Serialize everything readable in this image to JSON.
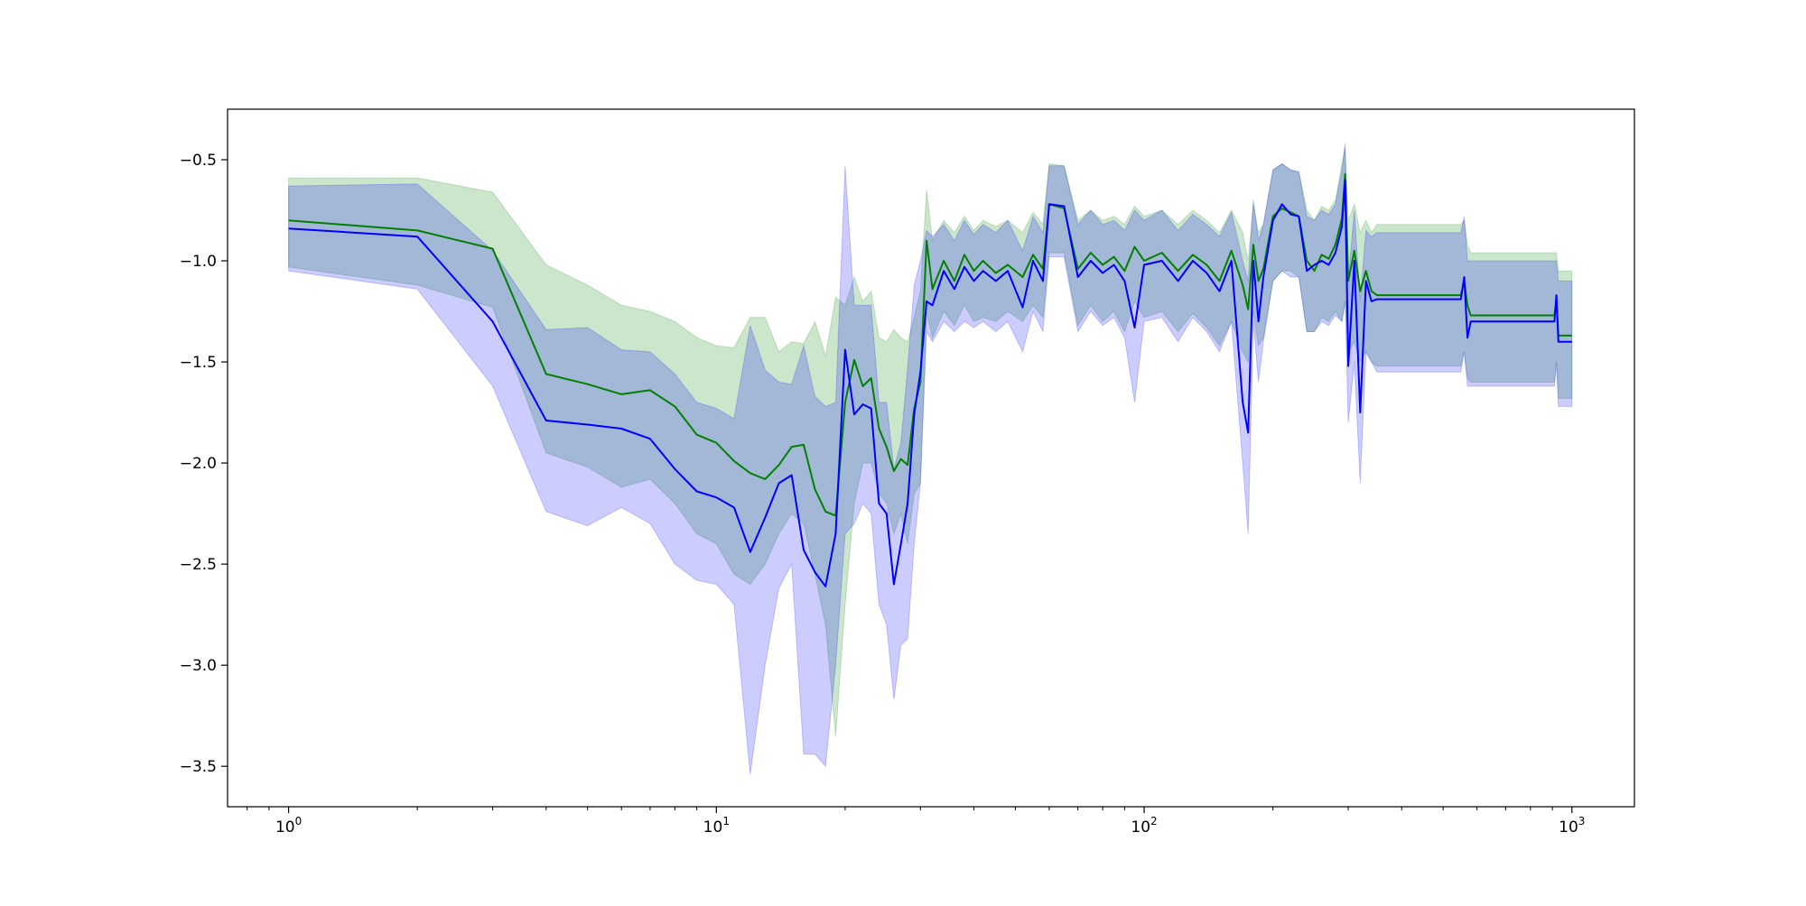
{
  "chart_data": {
    "type": "line",
    "title": "",
    "xlabel": "",
    "ylabel": "",
    "xscale": "log",
    "xlim": [
      0.72,
      1400
    ],
    "ylim": [
      -3.7,
      -0.25
    ],
    "grid": false,
    "legend": "none",
    "x_ticks": [
      {
        "value": 1,
        "base": "10",
        "exp": "0"
      },
      {
        "value": 10,
        "base": "10",
        "exp": "1"
      },
      {
        "value": 100,
        "base": "10",
        "exp": "2"
      },
      {
        "value": 1000,
        "base": "10",
        "exp": "3"
      }
    ],
    "y_ticks": [
      {
        "value": -0.5,
        "label": "−0.5"
      },
      {
        "value": -1.0,
        "label": "−1.0"
      },
      {
        "value": -1.5,
        "label": "−1.5"
      },
      {
        "value": -2.0,
        "label": "−2.0"
      },
      {
        "value": -2.5,
        "label": "−2.5"
      },
      {
        "value": -3.0,
        "label": "−3.0"
      },
      {
        "value": -3.5,
        "label": "−3.5"
      }
    ],
    "series": [
      {
        "color": "#008000",
        "band_color": "#008000",
        "x": [
          1,
          2,
          3,
          4,
          5,
          6,
          7,
          8,
          9,
          10,
          11,
          12,
          13,
          14,
          15,
          16,
          17,
          18,
          19,
          20,
          21,
          22,
          23,
          24,
          25,
          26,
          27,
          28,
          29,
          30,
          31,
          32,
          34,
          36,
          38,
          40,
          42,
          45,
          48,
          52,
          55,
          58,
          60,
          65,
          70,
          75,
          80,
          85,
          90,
          95,
          100,
          110,
          120,
          130,
          140,
          150,
          160,
          170,
          175,
          180,
          185,
          190,
          200,
          210,
          220,
          230,
          240,
          250,
          260,
          270,
          280,
          290,
          295,
          300,
          310,
          320,
          330,
          340,
          350,
          400,
          500,
          550,
          560,
          570,
          580,
          600,
          700,
          800,
          900,
          910,
          920,
          930,
          1000
        ],
        "y": [
          -0.8,
          -0.85,
          -0.94,
          -1.56,
          -1.61,
          -1.66,
          -1.64,
          -1.72,
          -1.86,
          -1.9,
          -1.99,
          -2.05,
          -2.08,
          -2.01,
          -1.92,
          -1.91,
          -2.13,
          -2.24,
          -2.26,
          -1.7,
          -1.49,
          -1.62,
          -1.58,
          -1.83,
          -1.92,
          -2.04,
          -1.98,
          -2.01,
          -1.73,
          -1.6,
          -0.9,
          -1.14,
          -1.0,
          -1.1,
          -0.97,
          -1.05,
          -1.0,
          -1.06,
          -1.02,
          -1.08,
          -0.97,
          -1.04,
          -0.72,
          -0.74,
          -1.04,
          -0.96,
          -1.02,
          -0.98,
          -1.05,
          -0.93,
          -1.0,
          -0.96,
          -1.05,
          -0.97,
          -1.02,
          -1.1,
          -0.95,
          -1.12,
          -1.24,
          -0.92,
          -1.1,
          -1.04,
          -0.78,
          -0.74,
          -0.76,
          -0.78,
          -1.0,
          -1.05,
          -0.97,
          -0.99,
          -0.92,
          -0.79,
          -0.57,
          -1.1,
          -0.95,
          -1.15,
          -1.05,
          -1.15,
          -1.17,
          -1.17,
          -1.17,
          -1.17,
          -1.1,
          -1.22,
          -1.27,
          -1.27,
          -1.27,
          -1.27,
          -1.27,
          -1.27,
          -1.2,
          -1.37,
          -1.37
        ],
        "lower": [
          -1.03,
          -1.12,
          -1.23,
          -1.95,
          -2.02,
          -2.12,
          -2.08,
          -2.2,
          -2.35,
          -2.4,
          -2.55,
          -2.6,
          -2.5,
          -2.35,
          -2.25,
          -2.3,
          -2.55,
          -2.8,
          -3.35,
          -2.7,
          -2.2,
          -2.0,
          -2.0,
          -2.15,
          -2.2,
          -2.35,
          -2.25,
          -2.4,
          -2.15,
          -2.1,
          -1.25,
          -1.38,
          -1.25,
          -1.32,
          -1.22,
          -1.3,
          -1.28,
          -1.3,
          -1.25,
          -1.3,
          -1.22,
          -1.28,
          -0.96,
          -0.96,
          -1.32,
          -1.22,
          -1.3,
          -1.25,
          -1.35,
          -1.2,
          -1.28,
          -1.25,
          -1.35,
          -1.26,
          -1.33,
          -1.42,
          -1.3,
          -1.45,
          -1.5,
          -1.25,
          -1.42,
          -1.38,
          -1.1,
          -1.05,
          -1.05,
          -1.08,
          -1.35,
          -1.35,
          -1.28,
          -1.3,
          -1.25,
          -1.3,
          -1.2,
          -1.45,
          -1.4,
          -1.5,
          -1.45,
          -1.5,
          -1.52,
          -1.52,
          -1.52,
          -1.52,
          -1.45,
          -1.58,
          -1.6,
          -1.6,
          -1.6,
          -1.6,
          -1.6,
          -1.6,
          -1.5,
          -1.68,
          -1.68
        ],
        "upper": [
          -0.59,
          -0.59,
          -0.66,
          -1.02,
          -1.12,
          -1.22,
          -1.25,
          -1.3,
          -1.38,
          -1.42,
          -1.43,
          -1.28,
          -1.28,
          -1.45,
          -1.4,
          -1.41,
          -1.3,
          -1.47,
          -1.18,
          -1.22,
          -1.08,
          -1.2,
          -1.15,
          -1.38,
          -1.4,
          -1.34,
          -1.38,
          -1.4,
          -1.28,
          -1.15,
          -0.65,
          -0.9,
          -0.8,
          -0.86,
          -0.78,
          -0.85,
          -0.8,
          -0.83,
          -0.8,
          -0.86,
          -0.76,
          -0.82,
          -0.52,
          -0.53,
          -0.8,
          -0.75,
          -0.8,
          -0.78,
          -0.82,
          -0.73,
          -0.78,
          -0.75,
          -0.82,
          -0.75,
          -0.8,
          -0.86,
          -0.75,
          -0.86,
          -1.0,
          -0.72,
          -0.86,
          -0.82,
          -0.55,
          -0.52,
          -0.55,
          -0.56,
          -0.75,
          -0.8,
          -0.73,
          -0.75,
          -0.7,
          -0.52,
          -0.44,
          -0.8,
          -0.72,
          -0.86,
          -0.8,
          -0.86,
          -0.82,
          -0.82,
          -0.82,
          -0.82,
          -0.8,
          -0.92,
          -0.96,
          -0.96,
          -0.96,
          -0.96,
          -0.96,
          -0.96,
          -0.96,
          -1.05,
          -1.05
        ]
      },
      {
        "color": "#0000ff",
        "band_color": "#0000ff",
        "x": [
          1,
          2,
          3,
          4,
          5,
          6,
          7,
          8,
          9,
          10,
          11,
          12,
          13,
          14,
          15,
          16,
          17,
          18,
          19,
          20,
          21,
          22,
          23,
          24,
          25,
          26,
          27,
          28,
          29,
          30,
          31,
          32,
          34,
          36,
          38,
          40,
          42,
          45,
          48,
          52,
          55,
          58,
          60,
          65,
          70,
          75,
          80,
          85,
          90,
          95,
          100,
          110,
          120,
          130,
          140,
          150,
          160,
          170,
          175,
          180,
          185,
          190,
          200,
          210,
          220,
          230,
          240,
          250,
          260,
          270,
          280,
          290,
          295,
          300,
          310,
          320,
          330,
          340,
          350,
          400,
          500,
          550,
          560,
          570,
          580,
          600,
          700,
          800,
          900,
          910,
          920,
          930,
          1000
        ],
        "y": [
          -0.84,
          -0.88,
          -1.3,
          -1.79,
          -1.81,
          -1.83,
          -1.88,
          -2.03,
          -2.14,
          -2.17,
          -2.22,
          -2.44,
          -2.27,
          -2.1,
          -2.06,
          -2.43,
          -2.54,
          -2.61,
          -2.35,
          -1.44,
          -1.76,
          -1.71,
          -1.73,
          -2.2,
          -2.25,
          -2.6,
          -2.4,
          -2.2,
          -1.76,
          -1.55,
          -1.2,
          -1.22,
          -1.05,
          -1.14,
          -1.03,
          -1.1,
          -1.05,
          -1.1,
          -1.05,
          -1.23,
          -1.0,
          -1.1,
          -0.72,
          -0.73,
          -1.08,
          -1.0,
          -1.06,
          -1.02,
          -1.1,
          -1.33,
          -1.02,
          -1.0,
          -1.1,
          -1.0,
          -1.06,
          -1.15,
          -1.0,
          -1.7,
          -1.85,
          -1.0,
          -1.3,
          -1.08,
          -0.8,
          -0.72,
          -0.77,
          -0.78,
          -1.05,
          -1.02,
          -1.0,
          -1.02,
          -0.96,
          -0.83,
          -0.6,
          -1.52,
          -1.0,
          -1.75,
          -1.1,
          -1.2,
          -1.19,
          -1.19,
          -1.19,
          -1.19,
          -1.08,
          -1.38,
          -1.3,
          -1.3,
          -1.3,
          -1.3,
          -1.3,
          -1.3,
          -1.17,
          -1.4,
          -1.4
        ],
        "lower": [
          -1.05,
          -1.14,
          -1.62,
          -2.24,
          -2.31,
          -2.22,
          -2.3,
          -2.5,
          -2.58,
          -2.6,
          -2.7,
          -3.54,
          -3.0,
          -2.62,
          -2.5,
          -3.44,
          -3.44,
          -3.5,
          -3.0,
          -2.35,
          -2.3,
          -2.2,
          -2.25,
          -2.7,
          -2.8,
          -3.17,
          -2.9,
          -2.87,
          -2.4,
          -2.1,
          -1.35,
          -1.4,
          -1.3,
          -1.35,
          -1.3,
          -1.33,
          -1.3,
          -1.35,
          -1.3,
          -1.45,
          -1.25,
          -1.35,
          -0.98,
          -0.98,
          -1.35,
          -1.25,
          -1.32,
          -1.28,
          -1.38,
          -1.7,
          -1.3,
          -1.28,
          -1.4,
          -1.28,
          -1.35,
          -1.45,
          -1.3,
          -2.0,
          -2.35,
          -1.3,
          -1.6,
          -1.4,
          -1.1,
          -1.05,
          -1.08,
          -1.08,
          -1.35,
          -1.35,
          -1.3,
          -1.32,
          -1.27,
          -1.3,
          -1.2,
          -1.8,
          -1.5,
          -2.1,
          -1.45,
          -1.5,
          -1.55,
          -1.55,
          -1.55,
          -1.55,
          -1.45,
          -1.62,
          -1.62,
          -1.62,
          -1.62,
          -1.62,
          -1.62,
          -1.62,
          -1.5,
          -1.72,
          -1.72
        ],
        "upper": [
          -0.63,
          -0.62,
          -0.95,
          -1.34,
          -1.33,
          -1.44,
          -1.45,
          -1.56,
          -1.7,
          -1.73,
          -1.78,
          -1.32,
          -1.54,
          -1.6,
          -1.61,
          -1.42,
          -1.67,
          -1.72,
          -1.7,
          -0.53,
          -1.22,
          -1.22,
          -1.22,
          -1.7,
          -1.7,
          -2.03,
          -1.9,
          -1.53,
          -1.12,
          -1.0,
          -0.85,
          -0.88,
          -0.82,
          -0.9,
          -0.8,
          -0.87,
          -0.82,
          -0.86,
          -0.8,
          -0.95,
          -0.78,
          -0.86,
          -0.53,
          -0.53,
          -0.82,
          -0.75,
          -0.82,
          -0.8,
          -0.85,
          -0.75,
          -0.8,
          -0.75,
          -0.85,
          -0.77,
          -0.82,
          -0.88,
          -0.76,
          -1.0,
          -1.1,
          -0.7,
          -0.9,
          -0.82,
          -0.55,
          -0.52,
          -0.55,
          -0.56,
          -0.78,
          -0.8,
          -0.75,
          -0.77,
          -0.72,
          -0.55,
          -0.42,
          -1.1,
          -0.75,
          -1.2,
          -0.85,
          -0.88,
          -0.86,
          -0.86,
          -0.86,
          -0.86,
          -0.78,
          -1.0,
          -1.0,
          -1.0,
          -1.0,
          -1.0,
          -1.0,
          -1.0,
          -1.0,
          -1.1,
          -1.1
        ]
      }
    ]
  }
}
